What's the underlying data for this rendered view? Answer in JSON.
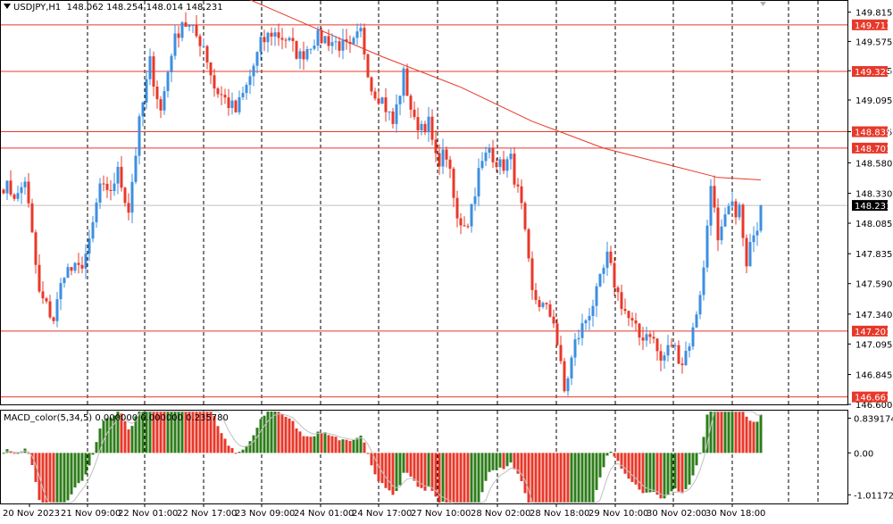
{
  "header": {
    "symbol": "USDJPY,H1",
    "ohlc": "148.062 148.254 148.014 148.231"
  },
  "macd": {
    "label": "MACD_color(5,34,5) 0.000000 0.000000 0.235780",
    "ticks": [
      "0.839174",
      "0.00",
      "-1.01172"
    ],
    "tick_values": [
      0.839174,
      0.0,
      -1.01172
    ],
    "range": [
      -1.2,
      1.0
    ],
    "positive_color": "#2e7d1a",
    "negative_color": "#e8382a",
    "signal_color": "#c0c0c0"
  },
  "colors": {
    "bull": "#3d8fe0",
    "bear": "#e8382a",
    "level_line": "#e8382a",
    "ma_line": "#e8382a",
    "grid": "#000000",
    "current_price_bg": "#000000"
  },
  "chart_data": {
    "type": "candlestick",
    "ylim": [
      146.6,
      149.9
    ],
    "y_ticks": [
      149.815,
      149.575,
      149.335,
      149.095,
      148.835,
      148.58,
      148.33,
      148.085,
      147.835,
      147.59,
      147.34,
      147.095,
      146.845,
      146.6
    ],
    "y_tick_labels": [
      "149.815",
      "149.575",
      "149.335",
      "149.095",
      "148.835",
      "148.580",
      "148.330",
      "148.085",
      "147.835",
      "147.590",
      "147.340",
      "147.095",
      "146.845",
      "146.600"
    ],
    "x_labels": [
      "20 Nov 2023",
      "21 Nov 09:00",
      "22 Nov 01:00",
      "22 Nov 17:00",
      "23 Nov 09:00",
      "24 Nov 01:00",
      "24 Nov 17:00",
      "27 Nov 10:00",
      "28 Nov 02:00",
      "28 Nov 18:00",
      "29 Nov 10:00",
      "30 Nov 02:00",
      "30 Nov 18:00"
    ],
    "levels": [
      {
        "value": 149.711,
        "label": "149.711"
      },
      {
        "value": 149.329,
        "label": "149.329"
      },
      {
        "value": 148.835,
        "label": "148.835"
      },
      {
        "value": 148.701,
        "label": "148.701"
      },
      {
        "value": 147.201,
        "label": "147.201"
      },
      {
        "value": 146.661,
        "label": "146.661"
      }
    ],
    "current_price": {
      "value": 148.231,
      "label": "148.231"
    },
    "anchors": [
      [
        0,
        148.4
      ],
      [
        4,
        148.3
      ],
      [
        6,
        148.45
      ],
      [
        10,
        147.5
      ],
      [
        14,
        147.3
      ],
      [
        17,
        147.7
      ],
      [
        21,
        147.7
      ],
      [
        24,
        147.9
      ],
      [
        27,
        148.4
      ],
      [
        29,
        148.3
      ],
      [
        32,
        148.5
      ],
      [
        35,
        148.2
      ],
      [
        38,
        148.9
      ],
      [
        41,
        149.4
      ],
      [
        44,
        149.0
      ],
      [
        47,
        149.5
      ],
      [
        50,
        149.75
      ],
      [
        53,
        149.65
      ],
      [
        56,
        149.55
      ],
      [
        59,
        149.2
      ],
      [
        62,
        149.1
      ],
      [
        65,
        149.0
      ],
      [
        68,
        149.2
      ],
      [
        72,
        149.55
      ],
      [
        75,
        149.65
      ],
      [
        79,
        149.6
      ],
      [
        83,
        149.45
      ],
      [
        87,
        149.6
      ],
      [
        90,
        149.6
      ],
      [
        94,
        149.55
      ],
      [
        97,
        149.5
      ],
      [
        100,
        149.65
      ],
      [
        103,
        149.2
      ],
      [
        106,
        149.1
      ],
      [
        109,
        148.9
      ],
      [
        112,
        149.3
      ],
      [
        115,
        148.9
      ],
      [
        119,
        148.9
      ],
      [
        121,
        148.6
      ],
      [
        124,
        148.65
      ],
      [
        127,
        148.1
      ],
      [
        130,
        148.1
      ],
      [
        133,
        148.5
      ],
      [
        136,
        148.7
      ],
      [
        139,
        148.55
      ],
      [
        142,
        148.6
      ],
      [
        145,
        148.2
      ],
      [
        148,
        147.5
      ],
      [
        151,
        147.4
      ],
      [
        154,
        147.3
      ],
      [
        157,
        146.7
      ],
      [
        160,
        147.1
      ],
      [
        163,
        147.3
      ],
      [
        166,
        147.5
      ],
      [
        169,
        147.8
      ],
      [
        172,
        147.5
      ],
      [
        175,
        147.3
      ],
      [
        178,
        147.15
      ],
      [
        181,
        147.2
      ],
      [
        184,
        146.95
      ],
      [
        187,
        147.1
      ],
      [
        190,
        146.95
      ],
      [
        193,
        147.2
      ],
      [
        196,
        147.7
      ],
      [
        198,
        148.45
      ],
      [
        200,
        147.9
      ],
      [
        203,
        148.2
      ],
      [
        206,
        148.2
      ],
      [
        208,
        147.7
      ],
      [
        210,
        148.05
      ],
      [
        212,
        148.1
      ]
    ],
    "ma": [
      [
        64,
        149.98
      ],
      [
        86,
        149.7
      ],
      [
        106,
        149.45
      ],
      [
        128,
        149.2
      ],
      [
        148,
        148.92
      ],
      [
        168,
        148.7
      ],
      [
        188,
        148.55
      ],
      [
        200,
        148.46
      ],
      [
        212,
        148.44
      ]
    ]
  }
}
